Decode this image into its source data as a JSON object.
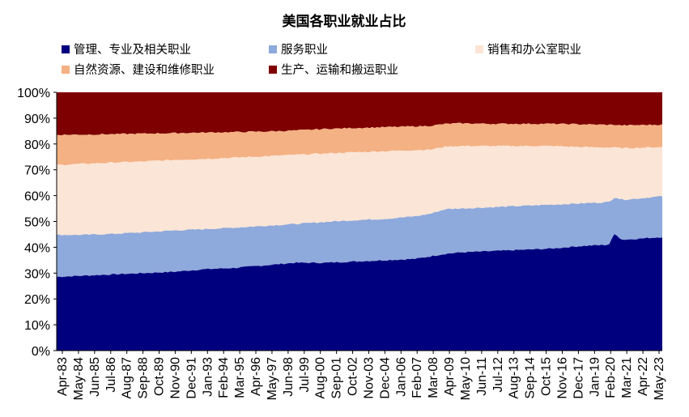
{
  "chart_data": {
    "type": "area",
    "stacked": true,
    "normalized": true,
    "title": "美国各职业就业占比",
    "xlabel": "",
    "ylabel": "",
    "ylim": [
      0,
      100
    ],
    "y_ticks": [
      "0%",
      "10%",
      "20%",
      "30%",
      "40%",
      "50%",
      "60%",
      "70%",
      "80%",
      "90%",
      "100%"
    ],
    "x_tick_labels": [
      "Apr-83",
      "May-84",
      "Jun-85",
      "Jul-86",
      "Aug-87",
      "Sep-88",
      "Oct-89",
      "Nov-90",
      "Dec-91",
      "Jan-93",
      "Feb-94",
      "Mar-95",
      "Apr-96",
      "May-97",
      "Jun-98",
      "Jul-99",
      "Aug-00",
      "Sep-01",
      "Oct-02",
      "Nov-03",
      "Dec-04",
      "Jan-06",
      "Feb-07",
      "Mar-08",
      "Apr-09",
      "May-10",
      "Jun-11",
      "Jul-12",
      "Aug-13",
      "Sep-14",
      "Oct-15",
      "Nov-16",
      "Dec-17",
      "Jan-19",
      "Feb-20",
      "Mar-21",
      "Apr-22",
      "May-23"
    ],
    "legend_position": "top",
    "sample_years": [
      1983,
      1985,
      1987,
      1989,
      1991,
      1993,
      1995,
      1997,
      1999,
      2001,
      2003,
      2005,
      2007,
      2008,
      2009,
      2010,
      2012,
      2014,
      2016,
      2018,
      2019.8,
      2020.2,
      2020.6,
      2021,
      2023.4
    ],
    "series": [
      {
        "name": "管理、专业及相关职业",
        "color": "#00007F",
        "values": [
          28.5,
          29,
          29.5,
          30,
          30.5,
          31.5,
          32,
          33,
          34,
          34,
          34.5,
          35,
          35.5,
          36.5,
          37.5,
          38,
          38.5,
          39,
          39.5,
          40.5,
          41,
          45.5,
          43,
          43,
          44
        ]
      },
      {
        "name": "服务职业",
        "color": "#8EA9DB",
        "values": [
          44.8,
          44.8,
          45.2,
          45.8,
          46.5,
          47,
          47.6,
          48.3,
          49,
          49.8,
          50.5,
          51,
          52,
          53,
          54.8,
          55,
          55.5,
          56,
          56.5,
          57,
          57.5,
          59.5,
          58.5,
          58.5,
          59.8
        ]
      },
      {
        "name": "销售和办公室职业",
        "color": "#FBE5D6",
        "values": [
          71.8,
          72.3,
          72.8,
          73.2,
          73.8,
          74.2,
          74.7,
          75.2,
          75.8,
          76.3,
          76.8,
          77.2,
          77.6,
          77.8,
          79,
          79.2,
          79.2,
          79.2,
          79.2,
          78.8,
          78.6,
          78.6,
          78.4,
          78.4,
          78.8
        ]
      },
      {
        "name": "自然资源、建设和维修职业",
        "color": "#F4B183",
        "values": [
          83.5,
          83.6,
          83.8,
          84,
          84.2,
          84.4,
          84.6,
          84.8,
          85.2,
          85.8,
          86.2,
          86.5,
          86.8,
          87,
          87.8,
          88,
          87.8,
          87.8,
          87.8,
          87.6,
          87.4,
          87.4,
          87.2,
          87.2,
          87.5
        ]
      },
      {
        "name": "生产、运输和搬运职业",
        "color": "#7F0000",
        "values": [
          100,
          100,
          100,
          100,
          100,
          100,
          100,
          100,
          100,
          100,
          100,
          100,
          100,
          100,
          100,
          100,
          100,
          100,
          100,
          100,
          100,
          100,
          100,
          100,
          100
        ]
      }
    ]
  }
}
